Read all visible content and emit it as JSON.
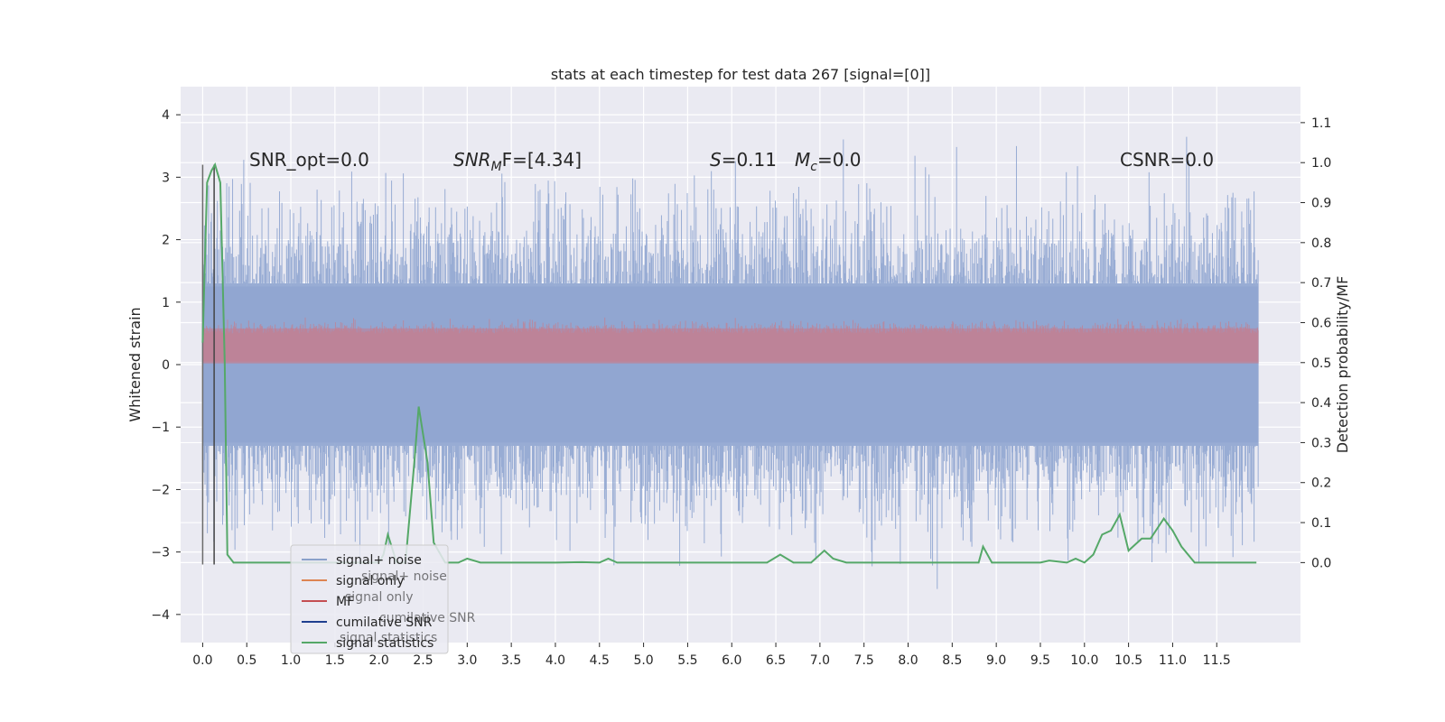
{
  "chart_data": {
    "type": "line",
    "title": "stats at each timestep for test data 267 [signal=[0]]",
    "xlabel": "",
    "ylabel": "Whitened strain",
    "y2label": "Detection probability/MF",
    "xlim": [
      -0.25,
      12.45
    ],
    "ylim": [
      -4.45,
      4.45
    ],
    "y2lim": [
      -0.2,
      1.19
    ],
    "xticks": [
      "0.0",
      "0.5",
      "1.0",
      "1.5",
      "2.0",
      "2.5",
      "3.0",
      "3.5",
      "4.0",
      "4.5",
      "5.0",
      "5.5",
      "6.0",
      "6.5",
      "7.0",
      "7.5",
      "8.0",
      "8.5",
      "9.0",
      "9.5",
      "10.0",
      "10.5",
      "11.0",
      "11.5"
    ],
    "yticks": [
      "−4",
      "−3",
      "−2",
      "−1",
      "0",
      "1",
      "2",
      "3",
      "4"
    ],
    "y2ticks": [
      "0.0",
      "0.1",
      "0.2",
      "0.3",
      "0.4",
      "0.5",
      "0.6",
      "0.7",
      "0.8",
      "0.9",
      "1.0",
      "1.1"
    ],
    "annotations": {
      "snr_opt": "SNR_opt=0.0",
      "snr_mf_main": "SNR",
      "snr_mf_sub": "M",
      "snr_mf_rest": "F=[4.34]",
      "s_italic": "S",
      "s_rest": "=0.11",
      "mc_main": "M",
      "mc_sub": "c",
      "mc_rest": "=0.0",
      "csnr": "CSNR=0.0"
    },
    "legend": {
      "position": "lower-left",
      "entries": [
        {
          "label": "signal+ noise",
          "color": "#4c72b0"
        },
        {
          "label": "signal only",
          "color": "#dd8452"
        },
        {
          "label": "MF",
          "color": "#c44e52"
        },
        {
          "label": "cumilative SNR",
          "color": "#1f3f8f"
        },
        {
          "label": "signal statistics",
          "color": "#55a868"
        }
      ],
      "ghost_labels": [
        "signal+ noise",
        "signal only",
        "cumilative SNR",
        "signal statistics"
      ]
    },
    "series": [
      {
        "name": "signal statistics",
        "axis": "right",
        "color": "#55a868",
        "x": [
          0.0,
          0.05,
          0.1,
          0.14,
          0.2,
          0.25,
          0.28,
          0.35,
          1.0,
          1.5,
          1.9,
          2.0,
          2.05,
          2.1,
          2.2,
          2.3,
          2.4,
          2.45,
          2.55,
          2.62,
          2.75,
          2.9,
          3.0,
          3.15,
          3.5,
          4.0,
          4.3,
          4.5,
          4.6,
          4.7,
          5.0,
          5.5,
          6.0,
          6.4,
          6.55,
          6.7,
          6.9,
          7.05,
          7.15,
          7.3,
          8.0,
          8.5,
          8.8,
          8.85,
          8.95,
          9.5,
          9.6,
          9.8,
          9.9,
          10.0,
          10.1,
          10.2,
          10.3,
          10.4,
          10.5,
          10.55,
          10.65,
          10.75,
          10.9,
          11.0,
          11.1,
          11.25,
          11.5,
          11.95
        ],
        "y": [
          0.55,
          0.95,
          0.98,
          0.995,
          0.95,
          0.5,
          0.02,
          0.0,
          0.0,
          0.0,
          0.0,
          0.0,
          0.02,
          0.07,
          0.0,
          0.0,
          0.25,
          0.39,
          0.25,
          0.05,
          0.0,
          0.0,
          0.01,
          0.0,
          0.0,
          0.0,
          0.001,
          0.0,
          0.01,
          0.0,
          0.0,
          0.0,
          0.0,
          0.0,
          0.02,
          0.0,
          0.0,
          0.03,
          0.01,
          0.0,
          0.0,
          0.0,
          0.0,
          0.04,
          0.0,
          0.0,
          0.005,
          0.0,
          0.01,
          0.0,
          0.02,
          0.07,
          0.08,
          0.12,
          0.03,
          0.04,
          0.06,
          0.06,
          0.11,
          0.08,
          0.04,
          0.0,
          0.0,
          0.0
        ]
      },
      {
        "name": "cumilative SNR",
        "axis": "left",
        "color": "#1f3f8f",
        "x": [
          0.0
        ],
        "y": [
          0.0
        ]
      }
    ]
  }
}
